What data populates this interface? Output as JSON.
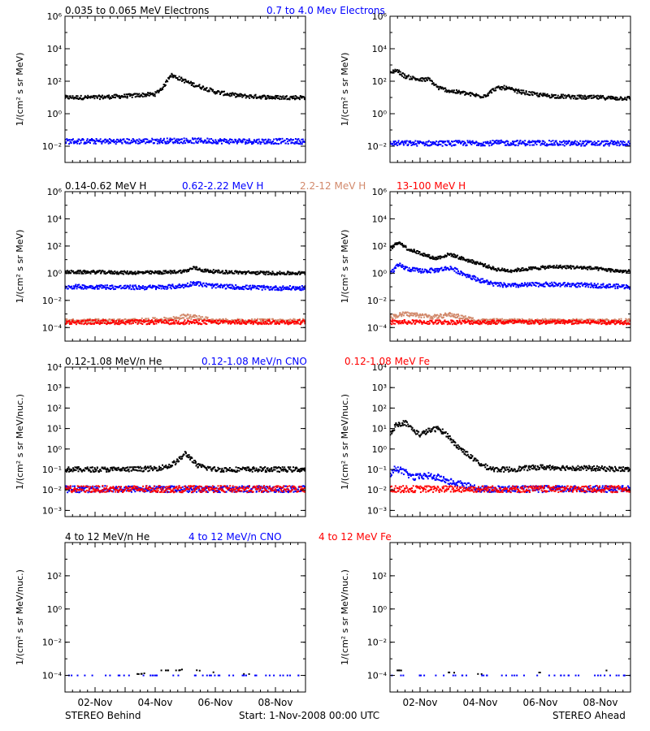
{
  "colors": {
    "black": "#000000",
    "blue": "#0000ff",
    "tan": "#d2896b",
    "red": "#ff0000"
  },
  "titles": {
    "row1": [
      "0.035 to 0.065 MeV Electrons",
      "0.7 to 4.0 Mev Electrons"
    ],
    "row2": [
      "0.14-0.62 MeV H",
      "0.62-2.22 MeV H",
      "2.2-12 MeV H",
      "13-100 MeV H"
    ],
    "row3": [
      "0.12-1.08 MeV/n He",
      "0.12-1.08 MeV/n CNO",
      "0.12-1.08 MeV Fe"
    ],
    "row4": [
      "4 to 12 MeV/n He",
      "4 to 12 MeV/n CNO",
      "4 to 12 MeV Fe"
    ]
  },
  "footer": {
    "left": "STEREO Behind",
    "center": "Start:  1-Nov-2008 00:00 UTC",
    "right": "STEREO Ahead"
  },
  "chart_data": [
    {
      "type": "scatter",
      "id": "behind-electrons",
      "ylabel": "1/(cm² s sr MeV)",
      "yscale": "log",
      "ylim": [
        0.001,
        1000000.0
      ],
      "yticks": [
        "10⁻²",
        "10⁰",
        "10²",
        "10⁴",
        "10⁶"
      ],
      "xlim": [
        0,
        8
      ],
      "xtick_labels": [],
      "series": [
        {
          "name": "0.035 to 0.065 MeV Electrons",
          "color": "#000000",
          "x": [
            0,
            1,
            2,
            2.5,
            3,
            3.3,
            3.5,
            3.8,
            4.2,
            4.6,
            5,
            5.5,
            6,
            6.5,
            7,
            8
          ],
          "y": [
            10,
            10,
            12,
            14,
            16,
            50,
            250,
            150,
            70,
            40,
            22,
            15,
            12,
            11,
            10,
            10
          ]
        },
        {
          "name": "0.7 to 4.0 Mev Electrons",
          "color": "#0000ff",
          "x": [
            0,
            2,
            4,
            6,
            8
          ],
          "y": [
            0.02,
            0.02,
            0.022,
            0.02,
            0.02
          ]
        }
      ]
    },
    {
      "type": "scatter",
      "id": "ahead-electrons",
      "ylabel": "1/(cm² s sr MeV)",
      "yscale": "log",
      "ylim": [
        0.001,
        1000000.0
      ],
      "yticks": [
        "10⁻²",
        "10⁰",
        "10²",
        "10⁴",
        "10⁶"
      ],
      "xlim": [
        0,
        8
      ],
      "xtick_labels": [],
      "series": [
        {
          "name": "0.035 to 0.065 MeV Electrons",
          "color": "#000000",
          "x": [
            0,
            0.2,
            0.5,
            0.8,
            1,
            1.3,
            1.6,
            2,
            2.5,
            3,
            3.2,
            3.5,
            3.8,
            4.2,
            4.6,
            5,
            5.5,
            6,
            6.5,
            7,
            7.5,
            8
          ],
          "y": [
            300,
            500,
            200,
            150,
            120,
            130,
            40,
            25,
            18,
            12,
            14,
            35,
            40,
            25,
            18,
            14,
            12,
            11,
            10,
            10,
            9,
            9
          ]
        },
        {
          "name": "0.7 to 4.0 Mev Electrons",
          "color": "#0000ff",
          "x": [
            0,
            2,
            4,
            6,
            8
          ],
          "y": [
            0.015,
            0.015,
            0.016,
            0.015,
            0.015
          ]
        }
      ]
    },
    {
      "type": "scatter",
      "id": "behind-protons",
      "ylabel": "1/(cm² s sr MeV)",
      "yscale": "log",
      "ylim": [
        1e-05,
        1000000.0
      ],
      "yticks": [
        "10⁻⁴",
        "10⁻²",
        "10⁰",
        "10²",
        "10⁴",
        "10⁶"
      ],
      "xlim": [
        0,
        8
      ],
      "xtick_labels": [],
      "series": [
        {
          "name": "0.14-0.62 MeV H",
          "color": "#000000",
          "x": [
            0,
            1,
            2,
            3,
            3.5,
            4,
            4.3,
            4.6,
            5,
            6,
            7,
            8
          ],
          "y": [
            1.2,
            1.2,
            1.1,
            1.1,
            1.2,
            1.4,
            2.5,
            1.6,
            1.3,
            1.1,
            1.0,
            1.0
          ]
        },
        {
          "name": "0.62-2.22 MeV H",
          "color": "#0000ff",
          "x": [
            0,
            1,
            2,
            3,
            3.5,
            4,
            4.3,
            4.6,
            5,
            6,
            7,
            8
          ],
          "y": [
            0.1,
            0.1,
            0.09,
            0.09,
            0.1,
            0.12,
            0.2,
            0.14,
            0.11,
            0.09,
            0.08,
            0.08
          ]
        },
        {
          "name": "2.2-12 MeV H",
          "color": "#d2896b",
          "x": [
            0,
            2,
            3.5,
            4,
            4.5,
            5,
            6,
            8
          ],
          "y": [
            0.0003,
            0.0003,
            0.0004,
            0.0007,
            0.0005,
            0.0003,
            0.0003,
            0.0003
          ]
        },
        {
          "name": "13-100 MeV H",
          "color": "#ff0000",
          "x": [
            0,
            2,
            4,
            6,
            8
          ],
          "y": [
            0.00025,
            0.00025,
            0.00025,
            0.00025,
            0.00025
          ]
        }
      ]
    },
    {
      "type": "scatter",
      "id": "ahead-protons",
      "ylabel": "1/(cm² s sr MeV)",
      "yscale": "log",
      "ylim": [
        1e-05,
        1000000.0
      ],
      "yticks": [
        "10⁻⁴",
        "10⁻²",
        "10⁰",
        "10²",
        "10⁴",
        "10⁶"
      ],
      "xlim": [
        0,
        8
      ],
      "xtick_labels": [],
      "series": [
        {
          "name": "0.14-0.62 MeV H",
          "color": "#000000",
          "x": [
            0,
            0.3,
            0.6,
            1,
            1.5,
            2,
            2.5,
            3,
            3.5,
            4,
            4.5,
            5,
            5.5,
            6,
            6.5,
            7,
            7.5,
            8
          ],
          "y": [
            60,
            200,
            60,
            30,
            12,
            25,
            10,
            5,
            2,
            1.5,
            2,
            2.5,
            3,
            2.8,
            2.5,
            2,
            1.5,
            1.3
          ]
        },
        {
          "name": "0.62-2.22 MeV H",
          "color": "#0000ff",
          "x": [
            0,
            0.3,
            0.6,
            1,
            1.5,
            2,
            2.5,
            3,
            3.5,
            4,
            5,
            6,
            7,
            8
          ],
          "y": [
            1,
            4,
            2,
            1.5,
            1.6,
            2.5,
            0.8,
            0.3,
            0.15,
            0.12,
            0.15,
            0.14,
            0.12,
            0.1
          ]
        },
        {
          "name": "2.2-12 MeV H",
          "color": "#d2896b",
          "x": [
            0,
            0.5,
            1,
            1.5,
            2,
            2.5,
            3,
            4,
            6,
            8
          ],
          "y": [
            0.0006,
            0.001,
            0.0008,
            0.0006,
            0.0009,
            0.0005,
            0.0003,
            0.0003,
            0.0003,
            0.0003
          ]
        },
        {
          "name": "13-100 MeV H",
          "color": "#ff0000",
          "x": [
            0,
            2,
            4,
            6,
            8
          ],
          "y": [
            0.00025,
            0.00025,
            0.00025,
            0.00025,
            0.00025
          ]
        }
      ]
    },
    {
      "type": "scatter",
      "id": "behind-heavy-low",
      "ylabel": "1/(cm² s sr MeV/nuc.)",
      "yscale": "log",
      "ylim": [
        0.0005,
        10000.0
      ],
      "yticks": [
        "10⁻³",
        "10⁻²",
        "10⁻¹",
        "10⁰",
        "10¹",
        "10²",
        "10³",
        "10⁴"
      ],
      "xlim": [
        0,
        8
      ],
      "xtick_labels": [],
      "series": [
        {
          "name": "0.12-1.08 MeV/n He",
          "color": "#000000",
          "x": [
            0,
            1,
            2,
            3,
            3.5,
            3.8,
            4,
            4.2,
            4.4,
            5,
            6,
            7,
            8
          ],
          "y": [
            0.1,
            0.1,
            0.1,
            0.11,
            0.15,
            0.3,
            0.6,
            0.35,
            0.15,
            0.1,
            0.1,
            0.1,
            0.1
          ]
        },
        {
          "name": "0.12-1.08 MeV/n CNO",
          "color": "#0000ff",
          "x": [
            0,
            2,
            4,
            6,
            8
          ],
          "y": [
            0.011,
            0.011,
            0.011,
            0.011,
            0.011
          ]
        },
        {
          "name": "0.12-1.08 MeV Fe",
          "color": "#ff0000",
          "x": [
            0,
            2,
            4,
            6,
            8
          ],
          "y": [
            0.011,
            0.011,
            0.011,
            0.011,
            0.011
          ]
        }
      ]
    },
    {
      "type": "scatter",
      "id": "ahead-heavy-low",
      "ylabel": "1/(cm² s sr MeV/nuc.)",
      "yscale": "log",
      "ylim": [
        0.0005,
        10000.0
      ],
      "yticks": [
        "10⁻³",
        "10⁻²",
        "10⁻¹",
        "10⁰",
        "10¹",
        "10²",
        "10³",
        "10⁴"
      ],
      "xlim": [
        0,
        8
      ],
      "xtick_labels": [],
      "series": [
        {
          "name": "0.12-1.08 MeV/n He",
          "color": "#000000",
          "x": [
            0,
            0.2,
            0.5,
            0.8,
            1,
            1.3,
            1.6,
            1.9,
            2.2,
            2.5,
            2.8,
            3.1,
            3.5,
            4,
            5,
            6,
            7,
            8
          ],
          "y": [
            5,
            15,
            20,
            8,
            5,
            8,
            10,
            5,
            1.5,
            0.7,
            0.3,
            0.15,
            0.1,
            0.1,
            0.13,
            0.12,
            0.11,
            0.1
          ]
        },
        {
          "name": "0.12-1.08 MeV/n CNO",
          "color": "#0000ff",
          "x": [
            0,
            0.2,
            0.5,
            0.8,
            1.2,
            1.6,
            2,
            3,
            4,
            6,
            8
          ],
          "y": [
            0.05,
            0.12,
            0.07,
            0.04,
            0.05,
            0.04,
            0.025,
            0.011,
            0.011,
            0.011,
            0.011
          ]
        },
        {
          "name": "0.12-1.08 MeV Fe",
          "color": "#ff0000",
          "x": [
            0,
            2,
            4,
            6,
            8
          ],
          "y": [
            0.011,
            0.011,
            0.011,
            0.011,
            0.011
          ]
        }
      ]
    },
    {
      "type": "scatter",
      "id": "behind-heavy-high",
      "ylabel": "1/(cm² s sr MeV/nuc.)",
      "yscale": "log",
      "ylim": [
        1e-05,
        10000.0
      ],
      "yticks": [
        "10⁻⁴",
        "10⁻²",
        "10⁰",
        "10²"
      ],
      "xlim": [
        0,
        8
      ],
      "xtick_labels": [
        "02-Nov",
        "04-Nov",
        "06-Nov",
        "08-Nov"
      ],
      "series": [
        {
          "name": "4 to 12 MeV/n He",
          "color": "#000000",
          "x": [
            1.2,
            2.5,
            3.2,
            3.5,
            3.8,
            4.1,
            4.4,
            5,
            6
          ],
          "y": [
            0.00015,
            0.00012,
            0.0002,
            0.0002,
            0.0002,
            0.0003,
            0.0002,
            0.00015,
            0.00012
          ]
        },
        {
          "name": "4 to 12 MeV/n CNO",
          "color": "#0000ff",
          "x": [
            0,
            2,
            4,
            6,
            8
          ],
          "y": [
            0.0001,
            0.0001,
            0.0001,
            0.0001,
            0.0001
          ]
        },
        {
          "name": "4 to 12 MeV Fe",
          "color": "#ff0000",
          "x": [],
          "y": []
        }
      ]
    },
    {
      "type": "scatter",
      "id": "ahead-heavy-high",
      "ylabel": "1/(cm² s sr MeV/nuc.)",
      "yscale": "log",
      "ylim": [
        1e-05,
        10000.0
      ],
      "yticks": [
        "10⁻⁴",
        "10⁻²",
        "10⁰",
        "10²"
      ],
      "xlim": [
        0,
        8
      ],
      "xtick_labels": [
        "02-Nov",
        "04-Nov",
        "06-Nov",
        "08-Nov"
      ],
      "series": [
        {
          "name": "4 to 12 MeV/n He",
          "color": "#000000",
          "x": [
            0.3,
            2,
            3,
            5,
            7.3,
            7.8
          ],
          "y": [
            0.0002,
            0.00015,
            0.00012,
            0.00015,
            0.0002,
            0.0003
          ]
        },
        {
          "name": "4 to 12 MeV/n CNO",
          "color": "#0000ff",
          "x": [
            0,
            2,
            4,
            6,
            8
          ],
          "y": [
            0.0001,
            0.0001,
            0.0001,
            0.0001,
            0.0001
          ]
        },
        {
          "name": "4 to 12 MeV Fe",
          "color": "#ff0000",
          "x": [],
          "y": []
        }
      ]
    }
  ]
}
